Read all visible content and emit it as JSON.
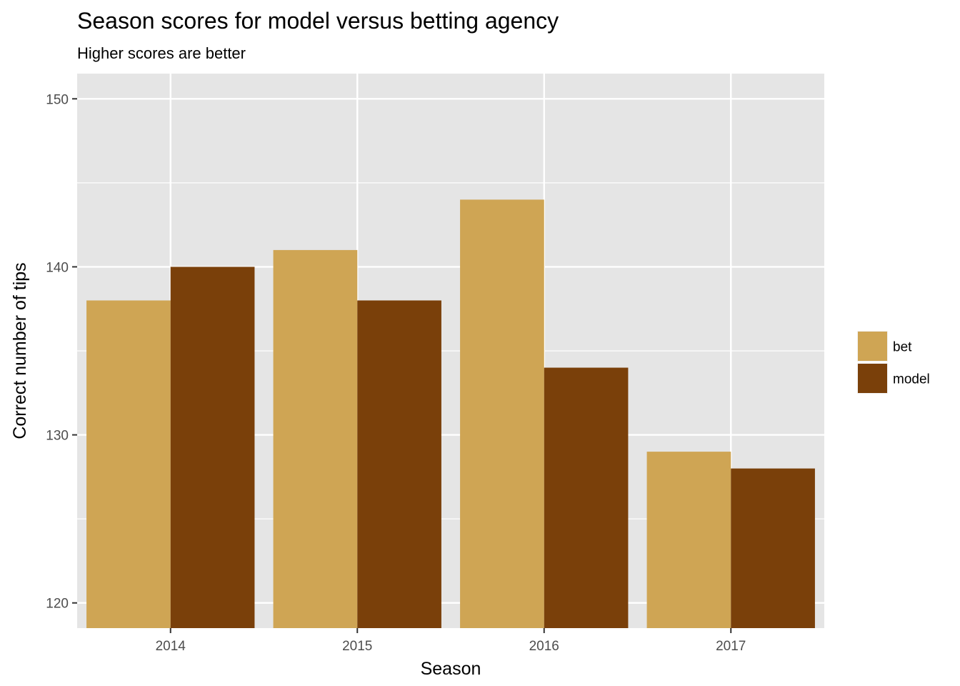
{
  "chart_data": {
    "type": "bar",
    "title": "Season scores for model versus betting agency",
    "subtitle": "Higher scores are better",
    "xlabel": "Season",
    "ylabel": "Correct number of tips",
    "categories": [
      "2014",
      "2015",
      "2016",
      "2017"
    ],
    "series": [
      {
        "name": "bet",
        "values": [
          138,
          141,
          144,
          129
        ],
        "color": "#CFA554"
      },
      {
        "name": "model",
        "values": [
          140,
          138,
          134,
          128
        ],
        "color": "#7A400A"
      }
    ],
    "ylim": [
      118.5,
      151.5
    ],
    "yticks": [
      120,
      130,
      140,
      150
    ],
    "grid": true,
    "legend_position": "right",
    "panel_background": "#E5E5E5",
    "grid_color": "#FFFFFF"
  }
}
